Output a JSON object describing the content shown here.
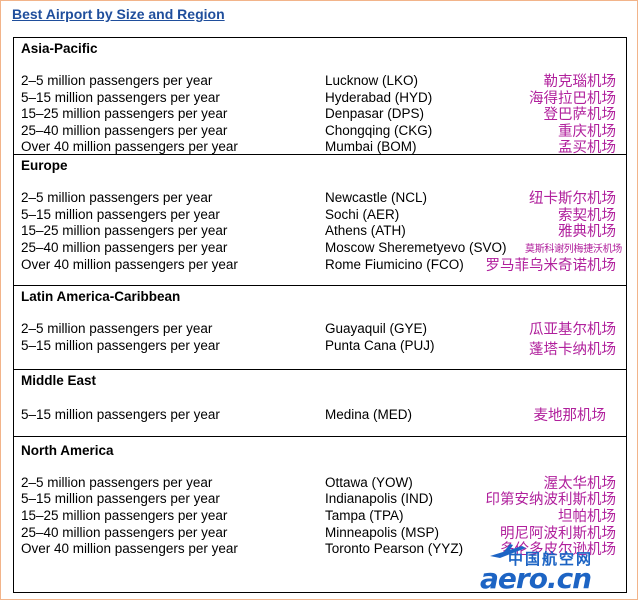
{
  "title": "Best Airport by Size and Region",
  "sections": [
    {
      "region": "Asia-Pacific",
      "rows": [
        {
          "category": "2–5 million passengers per year",
          "airport": "Lucknow (LKO)",
          "cn": "勒克瑙机场"
        },
        {
          "category": "5–15 million passengers per year",
          "airport": "Hyderabad (HYD)",
          "cn": "海得拉巴机场"
        },
        {
          "category": "15–25 million passengers per year",
          "airport": "Denpasar (DPS)",
          "cn": "登巴萨机场"
        },
        {
          "category": "25–40 million passengers per year",
          "airport": "Chongqing (CKG)",
          "cn": "重庆机场"
        },
        {
          "category": "Over 40 million passengers per year",
          "airport": "Mumbai (BOM)",
          "cn": "孟买机场"
        }
      ]
    },
    {
      "region": "Europe",
      "rows": [
        {
          "category": "2–5 million passengers per year",
          "airport": "Newcastle (NCL)",
          "cn": "纽卡斯尔机场"
        },
        {
          "category": "5–15 million passengers per year",
          "airport": "Sochi (AER)",
          "cn": "索契机场"
        },
        {
          "category": "15–25 million passengers per year",
          "airport": "Athens (ATH)",
          "cn": "雅典机场"
        },
        {
          "category": "25–40 million passengers per year",
          "airport": "Moscow Sheremetyevo (SVO)",
          "cn": "莫斯科谢列梅捷沃机场"
        },
        {
          "category": "Over 40 million passengers per year",
          "airport": "Rome Fiumicino (FCO)",
          "cn": "罗马菲乌米奇诺机场"
        }
      ]
    },
    {
      "region": "Latin America-Caribbean",
      "rows": [
        {
          "category": "2–5 million passengers per year",
          "airport": "Guayaquil (GYE)",
          "cn": "瓜亚基尔机场"
        },
        {
          "category": "5–15 million passengers per year",
          "airport": "Punta Cana (PUJ)",
          "cn": "蓬塔卡纳机场"
        }
      ]
    },
    {
      "region": "Middle East",
      "rows": [
        {
          "category": "5–15 million passengers per year",
          "airport": "Medina (MED)",
          "cn": "麦地那机场"
        }
      ]
    },
    {
      "region": "North America",
      "rows": [
        {
          "category": "2–5 million passengers per year",
          "airport": "Ottawa (YOW)",
          "cn": "渥太华机场"
        },
        {
          "category": "5–15 million passengers per year",
          "airport": "Indianapolis (IND)",
          "cn": "印第安纳波利斯机场"
        },
        {
          "category": "15–25 million passengers per year",
          "airport": "Tampa (TPA)",
          "cn": "坦帕机场"
        },
        {
          "category": "25–40 million passengers per year",
          "airport": "Minneapolis (MSP)",
          "cn": "明尼阿波利斯机场"
        },
        {
          "category": "Over 40 million passengers per year",
          "airport": "Toronto Pearson (YYZ)",
          "cn": "多伦多皮尔逊机场"
        }
      ]
    }
  ],
  "watermark": {
    "cn": "中国航空网",
    "en": "aero.cn",
    "color": "#1d64c4"
  }
}
